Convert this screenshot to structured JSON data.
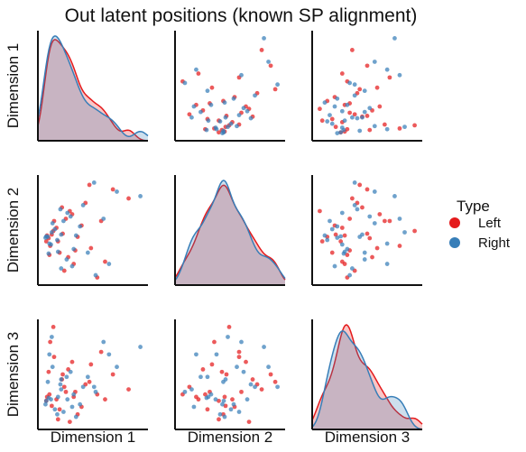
{
  "chart_data": {
    "type": "scatter",
    "title": "Out latent positions (known SP alignment)",
    "variables": [
      "Dimension 1",
      "Dimension 2",
      "Dimension 3"
    ],
    "legend": {
      "title": "Type",
      "position": "right",
      "entries": [
        {
          "name": "Left",
          "color": "#e41a1c"
        },
        {
          "name": "Right",
          "color": "#377eb8"
        }
      ]
    },
    "grid": false,
    "diagonal_kind": "kde",
    "off_diagonal_kind": "scatter",
    "series": [
      {
        "name": "Left",
        "color": "#e41a1c",
        "points": [
          [
            0.05,
            -0.05,
            0.02
          ],
          [
            0.12,
            0.1,
            -0.08
          ],
          [
            0.3,
            0.45,
            0.2
          ],
          [
            0.22,
            -0.3,
            -0.15
          ],
          [
            0.55,
            0.8,
            0.35
          ],
          [
            0.4,
            -0.55,
            0.1
          ],
          [
            0.08,
            0.02,
            0.6
          ],
          [
            0.35,
            0.62,
            -0.4
          ],
          [
            0.62,
            -0.2,
            0.75
          ],
          [
            0.18,
            0.25,
            0.05
          ],
          [
            0.9,
            1.1,
            0.55
          ],
          [
            0.28,
            -0.7,
            0.3
          ],
          [
            0.15,
            0.4,
            0.9
          ],
          [
            0.45,
            0.05,
            -0.25
          ],
          [
            0.7,
            -0.85,
            0.15
          ],
          [
            0.1,
            -0.15,
            1.2
          ],
          [
            0.25,
            0.7,
            0.45
          ],
          [
            0.5,
            0.3,
            -0.1
          ],
          [
            0.33,
            -0.4,
            0.65
          ],
          [
            1.1,
            0.9,
            0.25
          ],
          [
            0.06,
            0.08,
            0.1
          ],
          [
            0.2,
            -0.05,
            -0.35
          ],
          [
            0.38,
            0.55,
            0.8
          ],
          [
            0.8,
            -0.5,
            0.05
          ],
          [
            0.14,
            0.18,
            1.5
          ],
          [
            0.42,
            -0.25,
            0.2
          ],
          [
            0.6,
            1.2,
            0.4
          ],
          [
            0.09,
            -0.35,
            0.15
          ],
          [
            0.26,
            0.12,
            0.55
          ],
          [
            0.75,
            0.4,
            1.0
          ]
        ]
      },
      {
        "name": "Right",
        "color": "#377eb8",
        "points": [
          [
            0.04,
            0.03,
            -0.05
          ],
          [
            0.11,
            -0.12,
            0.05
          ],
          [
            0.27,
            0.4,
            -0.2
          ],
          [
            0.2,
            -0.28,
            0.1
          ],
          [
            0.52,
            0.75,
            0.3
          ],
          [
            0.38,
            -0.6,
            -0.1
          ],
          [
            0.07,
            0.05,
            0.4
          ],
          [
            0.32,
            0.58,
            0.05
          ],
          [
            0.58,
            -0.3,
            0.5
          ],
          [
            0.16,
            0.22,
            -0.15
          ],
          [
            0.95,
            1.05,
            0.7
          ],
          [
            0.24,
            -0.65,
            0.25
          ],
          [
            0.13,
            0.35,
            0.7
          ],
          [
            0.43,
            0.08,
            -0.3
          ],
          [
            0.68,
            -0.8,
            0.2
          ],
          [
            0.09,
            -0.1,
            0.95
          ],
          [
            0.23,
            0.66,
            0.35
          ],
          [
            0.48,
            0.28,
            -0.05
          ],
          [
            0.31,
            -0.45,
            0.5
          ],
          [
            1.25,
            0.95,
            1.1
          ],
          [
            0.05,
            0.06,
            0.02
          ],
          [
            0.19,
            -0.02,
            -0.25
          ],
          [
            0.36,
            0.5,
            0.6
          ],
          [
            0.85,
            -0.55,
            0.95
          ],
          [
            0.12,
            0.15,
            1.3
          ],
          [
            0.4,
            -0.22,
            0.15
          ],
          [
            0.66,
            1.25,
            0.3
          ],
          [
            0.08,
            -0.32,
            0.08
          ],
          [
            0.24,
            0.1,
            0.45
          ],
          [
            0.78,
            0.45,
            1.2
          ]
        ]
      }
    ]
  }
}
